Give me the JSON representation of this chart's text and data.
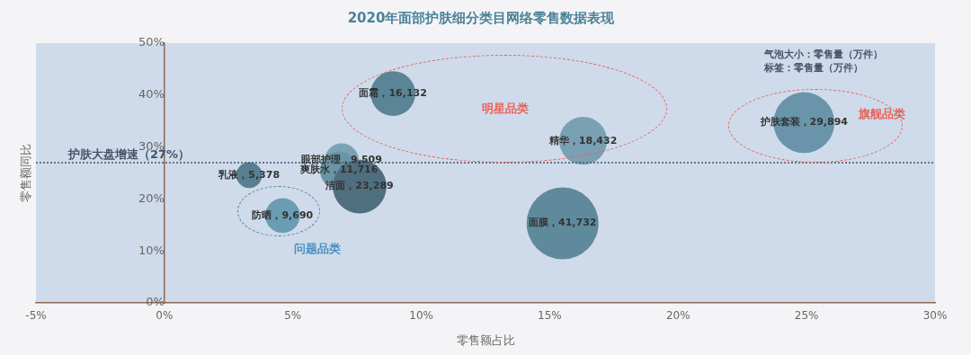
{
  "chart_data": {
    "type": "bubble",
    "title": "2020年面部护肤细分类目网络零售数据表现",
    "xlabel": "零售额占比",
    "ylabel": "零售额同比",
    "x": [
      8.9,
      16.3,
      24.9,
      15.5,
      3.3,
      4.6,
      6.9,
      6.8,
      7.6
    ],
    "values": [
      40.3,
      31.2,
      34.7,
      15.3,
      24.6,
      16.8,
      27.4,
      25.5,
      22.4
    ],
    "sizes": [
      16132,
      18432,
      29894,
      41732,
      5378,
      9690,
      9509,
      11716,
      23289
    ],
    "value_labels": [
      "面霜，16,132",
      "精华，18,432",
      "护肤套装，29,894",
      "面膜，41,732",
      "乳液，5,378",
      "防晒，9,690",
      "眼部护理，9,509",
      "爽肤水，11,716",
      "洁面，23,289"
    ],
    "colors": [
      "#5a8597",
      "#7aa0b3",
      "#6994a9",
      "#5f8a9c",
      "#587f91",
      "#6a9db3",
      "#7ba3b5",
      "#6b95a7",
      "#4f6f7f"
    ],
    "xlim": [
      -5,
      30
    ],
    "xticks": [
      {
        "value": -5,
        "label": "-5%"
      },
      {
        "value": 0,
        "label": "0%"
      },
      {
        "value": 5,
        "label": "5%"
      },
      {
        "value": 10,
        "label": "10%"
      },
      {
        "value": 15,
        "label": "15%"
      },
      {
        "value": 20,
        "label": "20%"
      },
      {
        "value": 25,
        "label": "25%"
      },
      {
        "value": 30,
        "label": "30%"
      }
    ],
    "ylim": [
      0,
      50
    ],
    "yticks": [
      {
        "value": 0,
        "label": "0%"
      },
      {
        "value": 10,
        "label": "10%"
      },
      {
        "value": 20,
        "label": "20%"
      },
      {
        "value": 30,
        "label": "30%"
      },
      {
        "value": 40,
        "label": "40%"
      },
      {
        "value": 50,
        "label": "50%"
      }
    ],
    "ref_lines": [
      {
        "axis": "y",
        "value": 27,
        "label": "护肤大盘增速（27%）",
        "color": "#44546a",
        "line_style": "dotted"
      }
    ],
    "annotations": [
      "气泡大小：零售量（万件）",
      "标签：零售量（万件）",
      "明星品类",
      "问题品类",
      "旗舰品类"
    ],
    "grid": false,
    "legend": false
  }
}
